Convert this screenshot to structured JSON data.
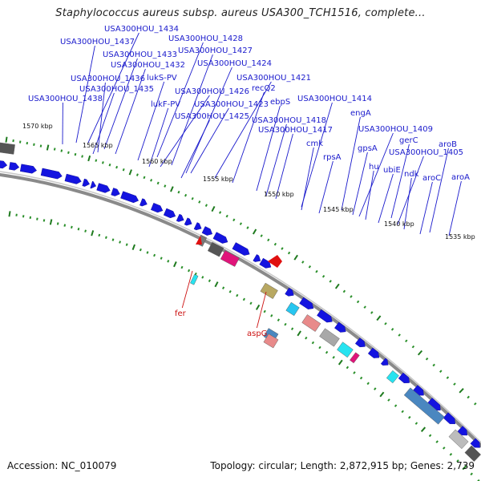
{
  "title": "Staphylococcus aureus subsp. aureus USA300_TCH1516, complete...",
  "footer": {
    "accession": "Accession: NC_010079",
    "stats": "Topology: circular; Length: 2,872,915 bp; Genes: 2,739"
  },
  "colors": {
    "gene_label": "#1a1acc",
    "rna_label": "#cc1111",
    "cds": "#1414e0",
    "backbone": "#8a8a8a",
    "tick_major": "#1e7a1e",
    "tick_minor": "#2a8f2a"
  },
  "scale_labels": [
    "1570 kbp",
    "1565 kbp",
    "1560 kbp",
    "1555 kbp",
    "1550 kbp",
    "1545 kbp",
    "1540 kbp",
    "1535 kbp"
  ],
  "gene_labels": [
    "USA300HOU_1434",
    "USA300HOU_1437",
    "USA300HOU_1428",
    "USA300HOU_1433",
    "USA300HOU_1427",
    "USA300HOU_1432",
    "USA300HOU_1424",
    "USA300HOU_1436",
    "lukS-PV",
    "USA300HOU_1435",
    "USA300HOU_1421",
    "USA300HOU_1426",
    "recQ2",
    "USA300HOU_1438",
    "lukF-PV",
    "USA300HOU_1423",
    "ebpS",
    "USA300HOU_1414",
    "USA300HOU_1425",
    "engA",
    "USA300HOU_1418",
    "USA300HOU_1417",
    "USA300HOU_1409",
    "cmk",
    "gpsA",
    "gerC",
    "USA300HOU_1405",
    "rpsA",
    "hu",
    "ubiE",
    "ndk",
    "aroB",
    "aroC",
    "aroA"
  ],
  "rna_labels": [
    "fer",
    "aspG"
  ]
}
